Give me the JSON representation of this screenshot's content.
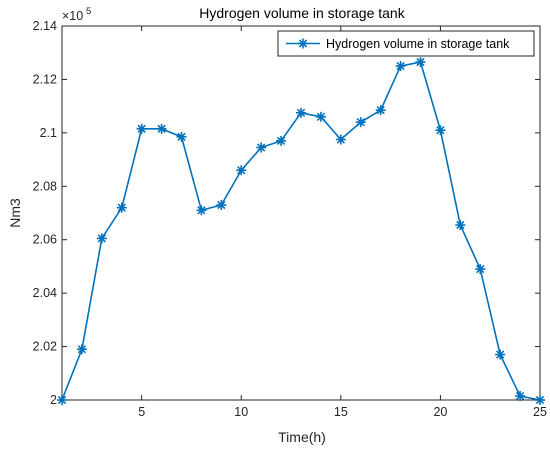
{
  "chart_data": {
    "type": "line",
    "title": "Hydrogen volume in storage tank",
    "xlabel": "Time(h)",
    "ylabel": "Nm3",
    "y_multiplier_base": "×10",
    "y_multiplier_exponent": "5",
    "xlim": [
      1,
      25
    ],
    "ylim": [
      2.0,
      2.14
    ],
    "x_ticks": [
      5,
      10,
      15,
      20,
      25
    ],
    "y_ticks": [
      2,
      2.02,
      2.04,
      2.06,
      2.08,
      2.1,
      2.12,
      2.14
    ],
    "x_tick_labels": [
      "5",
      "10",
      "15",
      "20",
      "25"
    ],
    "y_tick_labels": [
      "2",
      "2.02",
      "2.04",
      "2.06",
      "2.08",
      "2.1",
      "2.12",
      "2.14"
    ],
    "grid": false,
    "legend_position": "top-right",
    "marker": "asterisk",
    "series": [
      {
        "name": "Hydrogen volume in storage tank",
        "color": "#0072BD",
        "x": [
          1,
          2,
          3,
          4,
          5,
          6,
          7,
          8,
          9,
          10,
          11,
          12,
          13,
          14,
          15,
          16,
          17,
          18,
          19,
          20,
          21,
          22,
          23,
          24,
          25
        ],
        "y": [
          2.0,
          2.019,
          2.0605,
          2.072,
          2.1015,
          2.1015,
          2.0985,
          2.071,
          2.073,
          2.086,
          2.0945,
          2.097,
          2.1075,
          2.106,
          2.0975,
          2.104,
          2.1085,
          2.125,
          2.1265,
          2.101,
          2.0655,
          2.049,
          2.017,
          2.0015,
          2.0
        ]
      }
    ]
  }
}
